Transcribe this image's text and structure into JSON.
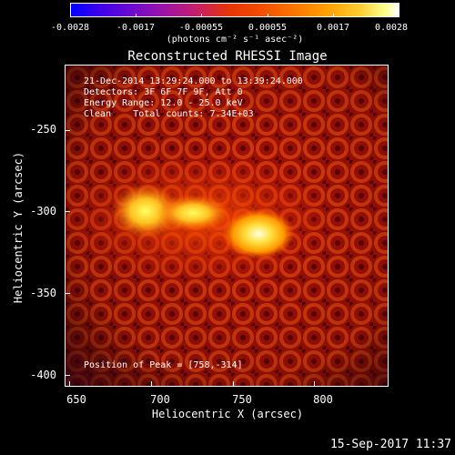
{
  "colorbar": {
    "tick_labels": [
      "-0.0028",
      "-0.0017",
      "-0.00055",
      "0.00055",
      "0.0017",
      "0.0028"
    ],
    "units_label": "(photons cm⁻² s⁻¹ asec⁻²)"
  },
  "title": "Reconstructed RHESSI Image",
  "info": {
    "line1": "21-Dec-2014 13:29:24.000 to 13:39:24.000",
    "line2": "Detectors: 3F 6F 7F 9F, Att 0",
    "line3": "Energy Range: 12.0 - 25.0 keV",
    "line4": "Clean    Total counts: 7.34E+03",
    "peak": "Position of Peak = [758,-314]"
  },
  "axes": {
    "xlabel": "Heliocentric X (arcsec)",
    "ylabel": "Heliocentric Y (arcsec)",
    "x_ticks": [
      "650",
      "700",
      "750",
      "800"
    ],
    "y_ticks": [
      "-250",
      "-300",
      "-350",
      "-400"
    ],
    "xlim": [
      647,
      845
    ],
    "ylim": [
      -405,
      -207
    ]
  },
  "timestamp": "15-Sep-2017 11:37",
  "colors": {
    "background": "#000000",
    "text": "#ffffff",
    "cmap_low": "#0000ff",
    "cmap_mid": "#e8330a",
    "cmap_high": "#ffffff"
  }
}
